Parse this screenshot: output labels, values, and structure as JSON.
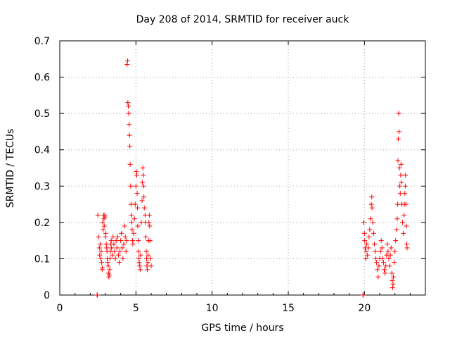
{
  "chart_data": {
    "type": "scatter",
    "title": "Day 208 of 2014, SRMTID for receiver auck",
    "xlabel": "GPS time / hours",
    "ylabel": "SRMTID / TECUs",
    "xlim": [
      0,
      24
    ],
    "ylim": [
      0,
      0.7
    ],
    "x_ticks": [
      "0",
      "5",
      "10",
      "15",
      "20"
    ],
    "y_ticks": [
      "0",
      "0.1",
      "0.2",
      "0.3",
      "0.4",
      "0.5",
      "0.6",
      "0.7"
    ],
    "grid": true,
    "marker": "plus",
    "colors": {
      "series": "#ff0000",
      "grid": "#a0a0a0",
      "axis": "#000000"
    },
    "series": [
      {
        "name": "SRMTID",
        "points": [
          [
            2.45,
            0.0
          ],
          [
            2.47,
            0.0
          ],
          [
            2.5,
            0.22
          ],
          [
            2.55,
            0.16
          ],
          [
            2.6,
            0.13
          ],
          [
            2.62,
            0.11
          ],
          [
            2.65,
            0.14
          ],
          [
            2.7,
            0.1
          ],
          [
            2.72,
            0.12
          ],
          [
            2.75,
            0.09
          ],
          [
            2.78,
            0.07
          ],
          [
            2.8,
            0.075
          ],
          [
            2.82,
            0.2
          ],
          [
            2.85,
            0.18
          ],
          [
            2.88,
            0.22
          ],
          [
            2.9,
            0.21
          ],
          [
            2.92,
            0.19
          ],
          [
            2.95,
            0.22
          ],
          [
            2.97,
            0.215
          ],
          [
            3.0,
            0.16
          ],
          [
            3.02,
            0.17
          ],
          [
            3.05,
            0.14
          ],
          [
            3.08,
            0.13
          ],
          [
            3.1,
            0.12
          ],
          [
            3.12,
            0.1
          ],
          [
            3.15,
            0.09
          ],
          [
            3.18,
            0.08
          ],
          [
            3.2,
            0.06
          ],
          [
            3.22,
            0.05
          ],
          [
            3.25,
            0.055
          ],
          [
            3.28,
            0.07
          ],
          [
            3.3,
            0.1
          ],
          [
            3.32,
            0.12
          ],
          [
            3.35,
            0.14
          ],
          [
            3.38,
            0.15
          ],
          [
            3.4,
            0.13
          ],
          [
            3.45,
            0.11
          ],
          [
            3.5,
            0.16
          ],
          [
            3.55,
            0.14
          ],
          [
            3.6,
            0.12
          ],
          [
            3.65,
            0.1
          ],
          [
            3.7,
            0.15
          ],
          [
            3.75,
            0.13
          ],
          [
            3.8,
            0.16
          ],
          [
            3.85,
            0.11
          ],
          [
            3.9,
            0.09
          ],
          [
            3.95,
            0.12
          ],
          [
            4.0,
            0.15
          ],
          [
            4.05,
            0.17
          ],
          [
            4.1,
            0.13
          ],
          [
            4.15,
            0.1
          ],
          [
            4.2,
            0.14
          ],
          [
            4.25,
            0.19
          ],
          [
            4.3,
            0.16
          ],
          [
            4.35,
            0.12
          ],
          [
            4.4,
            0.15
          ],
          [
            4.42,
            0.635
          ],
          [
            4.45,
            0.645
          ],
          [
            4.47,
            0.53
          ],
          [
            4.5,
            0.52
          ],
          [
            4.52,
            0.5
          ],
          [
            4.55,
            0.47
          ],
          [
            4.57,
            0.44
          ],
          [
            4.6,
            0.41
          ],
          [
            4.62,
            0.36
          ],
          [
            4.65,
            0.3
          ],
          [
            4.68,
            0.25
          ],
          [
            4.7,
            0.22
          ],
          [
            4.72,
            0.2
          ],
          [
            4.75,
            0.18
          ],
          [
            4.78,
            0.15
          ],
          [
            4.8,
            0.14
          ],
          [
            4.85,
            0.17
          ],
          [
            4.9,
            0.21
          ],
          [
            4.95,
            0.25
          ],
          [
            5.0,
            0.3
          ],
          [
            5.02,
            0.34
          ],
          [
            5.05,
            0.33
          ],
          [
            5.08,
            0.28
          ],
          [
            5.1,
            0.24
          ],
          [
            5.12,
            0.19
          ],
          [
            5.15,
            0.15
          ],
          [
            5.18,
            0.12
          ],
          [
            5.2,
            0.1
          ],
          [
            5.22,
            0.09
          ],
          [
            5.25,
            0.08
          ],
          [
            5.28,
            0.07
          ],
          [
            5.3,
            0.11
          ],
          [
            5.35,
            0.2
          ],
          [
            5.4,
            0.26
          ],
          [
            5.42,
            0.31
          ],
          [
            5.45,
            0.35
          ],
          [
            5.48,
            0.33
          ],
          [
            5.5,
            0.3
          ],
          [
            5.52,
            0.27
          ],
          [
            5.55,
            0.24
          ],
          [
            5.6,
            0.22
          ],
          [
            5.62,
            0.2
          ],
          [
            5.65,
            0.16
          ],
          [
            5.68,
            0.12
          ],
          [
            5.7,
            0.1
          ],
          [
            5.72,
            0.08
          ],
          [
            5.75,
            0.07
          ],
          [
            5.78,
            0.09
          ],
          [
            5.8,
            0.11
          ],
          [
            5.82,
            0.15
          ],
          [
            5.85,
            0.2
          ],
          [
            5.88,
            0.22
          ],
          [
            5.9,
            0.19
          ],
          [
            5.92,
            0.15
          ],
          [
            5.95,
            0.1
          ],
          [
            6.0,
            0.08
          ],
          [
            19.9,
            0.0
          ],
          [
            19.92,
            0.0
          ],
          [
            19.95,
            0.2
          ],
          [
            20.0,
            0.17
          ],
          [
            20.02,
            0.15
          ],
          [
            20.05,
            0.13
          ],
          [
            20.08,
            0.1
          ],
          [
            20.1,
            0.12
          ],
          [
            20.15,
            0.14
          ],
          [
            20.2,
            0.11
          ],
          [
            20.25,
            0.13
          ],
          [
            20.3,
            0.16
          ],
          [
            20.35,
            0.18
          ],
          [
            20.4,
            0.21
          ],
          [
            20.45,
            0.25
          ],
          [
            20.48,
            0.27
          ],
          [
            20.5,
            0.24
          ],
          [
            20.55,
            0.2
          ],
          [
            20.6,
            0.17
          ],
          [
            20.65,
            0.14
          ],
          [
            20.7,
            0.12
          ],
          [
            20.75,
            0.1
          ],
          [
            20.8,
            0.09
          ],
          [
            20.85,
            0.07
          ],
          [
            20.9,
            0.05
          ],
          [
            20.95,
            0.08
          ],
          [
            21.0,
            0.1
          ],
          [
            21.05,
            0.12
          ],
          [
            21.1,
            0.15
          ],
          [
            21.15,
            0.13
          ],
          [
            21.2,
            0.1
          ],
          [
            21.25,
            0.09
          ],
          [
            21.3,
            0.07
          ],
          [
            21.35,
            0.06
          ],
          [
            21.4,
            0.08
          ],
          [
            21.45,
            0.11
          ],
          [
            21.5,
            0.14
          ],
          [
            21.55,
            0.12
          ],
          [
            21.6,
            0.1
          ],
          [
            21.65,
            0.08
          ],
          [
            21.7,
            0.11
          ],
          [
            21.75,
            0.13
          ],
          [
            21.8,
            0.06
          ],
          [
            21.82,
            0.04
          ],
          [
            21.85,
            0.02
          ],
          [
            21.88,
            0.03
          ],
          [
            21.9,
            0.05
          ],
          [
            21.95,
            0.09
          ],
          [
            22.0,
            0.12
          ],
          [
            22.05,
            0.15
          ],
          [
            22.1,
            0.18
          ],
          [
            22.15,
            0.21
          ],
          [
            22.18,
            0.25
          ],
          [
            22.2,
            0.37
          ],
          [
            22.22,
            0.43
          ],
          [
            22.25,
            0.5
          ],
          [
            22.27,
            0.45
          ],
          [
            22.3,
            0.35
          ],
          [
            22.32,
            0.3
          ],
          [
            22.35,
            0.28
          ],
          [
            22.38,
            0.33
          ],
          [
            22.4,
            0.36
          ],
          [
            22.42,
            0.31
          ],
          [
            22.45,
            0.25
          ],
          [
            22.5,
            0.2
          ],
          [
            22.55,
            0.17
          ],
          [
            22.6,
            0.22
          ],
          [
            22.62,
            0.25
          ],
          [
            22.65,
            0.28
          ],
          [
            22.68,
            0.3
          ],
          [
            22.7,
            0.33
          ],
          [
            22.72,
            0.25
          ],
          [
            22.75,
            0.19
          ],
          [
            22.78,
            0.14
          ],
          [
            22.8,
            0.13
          ]
        ]
      }
    ]
  }
}
